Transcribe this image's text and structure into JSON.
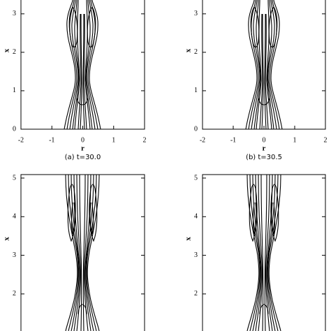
{
  "chart_data": [
    {
      "type": "contour",
      "xlabel": "r",
      "ylabel": "x",
      "caption": "(a) t=30.0",
      "xlim": [
        -2,
        2
      ],
      "xticks": [
        -2,
        -1,
        0,
        1,
        2
      ],
      "ylim": [
        0,
        3.36
      ],
      "yticks": [
        0,
        1,
        2,
        3
      ]
    },
    {
      "type": "contour",
      "xlabel": "r",
      "ylabel": "x",
      "caption": "(b) t=30.5",
      "xlim": [
        -2,
        2
      ],
      "xticks": [
        -2,
        -1,
        0,
        1,
        2
      ],
      "ylim": [
        0,
        3.36
      ],
      "yticks": [
        0,
        1,
        2,
        3
      ]
    },
    {
      "type": "contour",
      "ylabel": "x",
      "ylim": [
        1.04,
        5.09
      ],
      "yticks": [
        2,
        3,
        4,
        5
      ]
    },
    {
      "type": "contour",
      "ylabel": "x",
      "ylim": [
        1.04,
        5.09
      ],
      "yticks": [
        2,
        3,
        4,
        5
      ]
    }
  ]
}
